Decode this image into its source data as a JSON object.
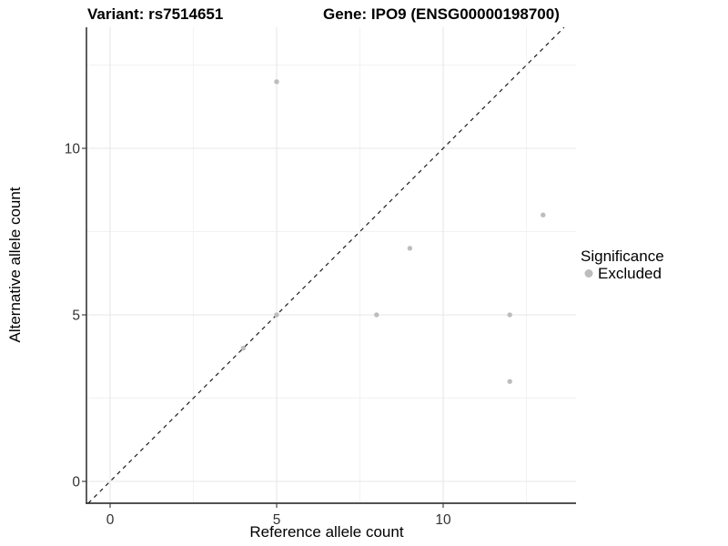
{
  "chart_data": {
    "type": "scatter",
    "title_left": "Variant: rs7514651",
    "title_right": "Gene: IPO9 (ENSG00000198700)",
    "xlabel": "Reference allele count",
    "ylabel": "Alternative allele count",
    "xlim": [
      -0.71,
      13.99
    ],
    "ylim": [
      -0.655,
      13.63
    ],
    "x_ticks": [
      0,
      5,
      10
    ],
    "y_ticks": [
      0,
      5,
      10
    ],
    "x_minor_gridlines": [
      2.5,
      7.5,
      12.5
    ],
    "y_minor_gridlines": [
      2.5,
      7.5,
      12.5
    ],
    "grid": true,
    "identity_line": {
      "equation": "y = x",
      "style": "dashed",
      "color": "#1a1a1a"
    },
    "series": [
      {
        "name": "Excluded",
        "color": "#bdbdbd",
        "points": [
          [
            4,
            4
          ],
          [
            5,
            5
          ],
          [
            5,
            12
          ],
          [
            8,
            5
          ],
          [
            9,
            7
          ],
          [
            12,
            3
          ],
          [
            12,
            5
          ],
          [
            13,
            8
          ]
        ]
      }
    ],
    "legend": {
      "title": "Significance",
      "position": "right",
      "items": [
        {
          "label": "Excluded",
          "color": "#bdbdbd"
        }
      ]
    },
    "style": {
      "background": "#ffffff",
      "major_grid_color": "#e7e7e7",
      "minor_grid_color": "#f1f1f1",
      "axis_line_color": "#1a1a1a",
      "tick_color": "#333333"
    }
  }
}
